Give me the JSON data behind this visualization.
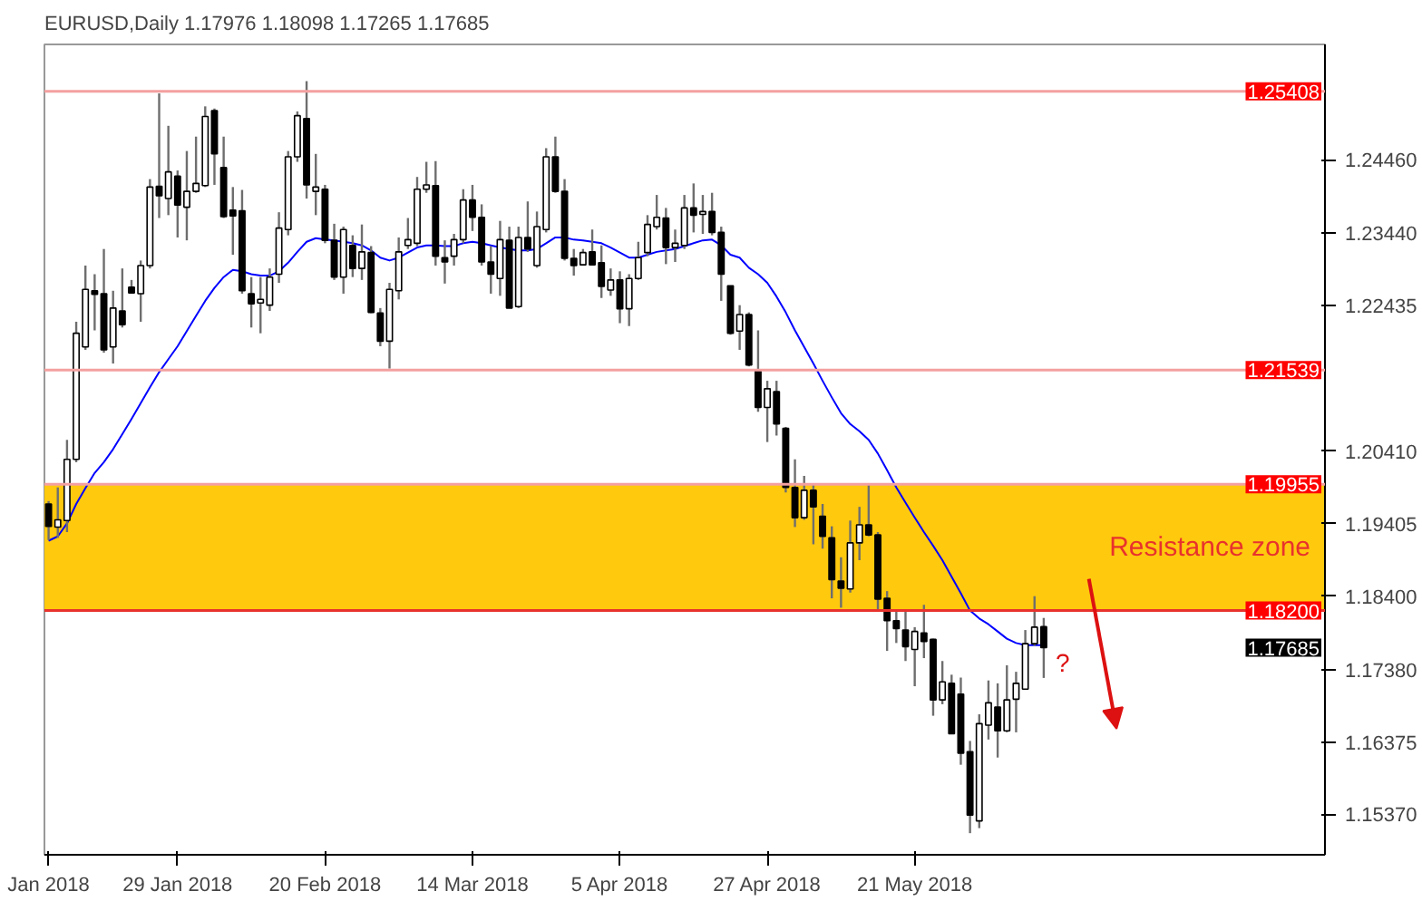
{
  "chart_data": {
    "type": "candlestick",
    "title": "EURUSD,Daily 1.17976 1.18098 1.17265 1.17685",
    "categories": [
      "Jan 2018",
      null,
      null,
      null,
      null,
      null,
      null,
      null,
      null,
      null,
      null,
      null,
      null,
      null,
      "29 Jan 2018",
      null,
      null,
      null,
      null,
      null,
      null,
      null,
      null,
      null,
      null,
      null,
      null,
      null,
      null,
      null,
      "20 Feb 2018",
      null,
      null,
      null,
      null,
      null,
      null,
      null,
      null,
      null,
      null,
      null,
      null,
      null,
      null,
      null,
      "14 Mar 2018",
      null,
      null,
      null,
      null,
      null,
      null,
      null,
      null,
      null,
      null,
      null,
      null,
      null,
      null,
      null,
      "5 Apr 2018",
      null,
      null,
      null,
      null,
      null,
      null,
      null,
      null,
      null,
      null,
      null,
      null,
      null,
      null,
      null,
      "27 Apr 2018",
      null,
      null,
      null,
      null,
      null,
      null,
      null,
      null,
      null,
      null,
      null,
      null,
      null,
      null,
      null,
      "21 May 2018",
      null,
      null,
      null,
      null,
      null,
      null,
      null,
      null,
      null,
      null,
      null,
      null,
      null,
      null
    ],
    "ohlc": [
      [
        1.1968,
        1.1972,
        1.1918,
        1.1937
      ],
      [
        1.1936,
        1.1991,
        1.1921,
        1.1946
      ],
      [
        1.1945,
        1.2057,
        1.1929,
        1.203
      ],
      [
        1.203,
        1.2221,
        1.2026,
        1.2205
      ],
      [
        1.2186,
        1.2299,
        1.2182,
        1.2266
      ],
      [
        1.2264,
        1.2287,
        1.2209,
        1.2259
      ],
      [
        1.226,
        1.2322,
        1.2178,
        1.2182
      ],
      [
        1.2186,
        1.2264,
        1.2163,
        1.224
      ],
      [
        1.2236,
        1.2295,
        1.2213,
        1.2217
      ],
      [
        1.2269,
        1.2279,
        1.226,
        1.2261
      ],
      [
        1.226,
        1.2306,
        1.2221,
        1.2299
      ],
      [
        1.2299,
        1.2419,
        1.2295,
        1.2408
      ],
      [
        1.2409,
        1.2538,
        1.2365,
        1.2396
      ],
      [
        1.2392,
        1.2493,
        1.2369,
        1.2429
      ],
      [
        1.2423,
        1.2431,
        1.2338,
        1.2383
      ],
      [
        1.238,
        1.2458,
        1.2334,
        1.2402
      ],
      [
        1.2402,
        1.2478,
        1.24,
        1.2413
      ],
      [
        1.241,
        1.252,
        1.2408,
        1.2506
      ],
      [
        1.2514,
        1.2517,
        1.2411,
        1.2454
      ],
      [
        1.2435,
        1.2478,
        1.2365,
        1.2367
      ],
      [
        1.2376,
        1.2408,
        1.2314,
        1.2368
      ],
      [
        1.2375,
        1.2404,
        1.226,
        1.2264
      ],
      [
        1.226,
        1.2283,
        1.2213,
        1.2246
      ],
      [
        1.2247,
        1.2283,
        1.2205,
        1.2252
      ],
      [
        1.2244,
        1.2295,
        1.2236,
        1.2283
      ],
      [
        1.2287,
        1.2373,
        1.2275,
        1.2351
      ],
      [
        1.2349,
        1.2458,
        1.2341,
        1.245
      ],
      [
        1.245,
        1.2513,
        1.2443,
        1.2507
      ],
      [
        1.2503,
        1.2555,
        1.2392,
        1.2411
      ],
      [
        1.2402,
        1.2454,
        1.2369,
        1.2408
      ],
      [
        1.2405,
        1.2411,
        1.233,
        1.2334
      ],
      [
        1.2334,
        1.2357,
        1.2279,
        1.2283
      ],
      [
        1.2283,
        1.2353,
        1.226,
        1.2349
      ],
      [
        1.2327,
        1.2341,
        1.2283,
        1.2295
      ],
      [
        1.2295,
        1.2356,
        1.2279,
        1.2318
      ],
      [
        1.2317,
        1.2326,
        1.2233,
        1.2234
      ],
      [
        1.2233,
        1.224,
        1.2187,
        1.2194
      ],
      [
        1.2194,
        1.2275,
        1.2156,
        1.2266
      ],
      [
        1.2264,
        1.2338,
        1.2252,
        1.2318
      ],
      [
        1.2327,
        1.2365,
        1.2322,
        1.2335
      ],
      [
        1.233,
        1.2422,
        1.2326,
        1.2405
      ],
      [
        1.2405,
        1.2443,
        1.24,
        1.2411
      ],
      [
        1.241,
        1.2444,
        1.2299,
        1.2312
      ],
      [
        1.231,
        1.2334,
        1.2274,
        1.2304
      ],
      [
        1.2312,
        1.2343,
        1.2299,
        1.2335
      ],
      [
        1.2335,
        1.2405,
        1.233,
        1.239
      ],
      [
        1.239,
        1.2411,
        1.2347,
        1.2366
      ],
      [
        1.2366,
        1.2384,
        1.2299,
        1.2304
      ],
      [
        1.2304,
        1.2326,
        1.226,
        1.2287
      ],
      [
        1.2281,
        1.2361,
        1.2257,
        1.2335
      ],
      [
        1.2334,
        1.2353,
        1.224,
        1.224
      ],
      [
        1.2242,
        1.2353,
        1.224,
        1.2338
      ],
      [
        1.2338,
        1.2388,
        1.2318,
        1.2322
      ],
      [
        1.2299,
        1.2374,
        1.2296,
        1.2353
      ],
      [
        1.2349,
        1.2462,
        1.2345,
        1.245
      ],
      [
        1.245,
        1.2478,
        1.24,
        1.2402
      ],
      [
        1.2402,
        1.2419,
        1.2306,
        1.2309
      ],
      [
        1.2309,
        1.2322,
        1.2285,
        1.2299
      ],
      [
        1.23,
        1.2322,
        1.2299,
        1.2317
      ],
      [
        1.2318,
        1.2349,
        1.2299,
        1.23
      ],
      [
        1.2303,
        1.2327,
        1.2254,
        1.227
      ],
      [
        1.2265,
        1.2295,
        1.2257,
        1.2279
      ],
      [
        1.2279,
        1.2291,
        1.2219,
        1.2239
      ],
      [
        1.2239,
        1.2287,
        1.2215,
        1.2281
      ],
      [
        1.2281,
        1.2332,
        1.2279,
        1.231
      ],
      [
        1.2317,
        1.2369,
        1.2312,
        1.2356
      ],
      [
        1.2353,
        1.2397,
        1.2349,
        1.2366
      ],
      [
        1.2365,
        1.2379,
        1.2301,
        1.2324
      ],
      [
        1.2324,
        1.2349,
        1.2304,
        1.233
      ],
      [
        1.2327,
        1.2397,
        1.2322,
        1.2379
      ],
      [
        1.2379,
        1.2413,
        1.2345,
        1.2369
      ],
      [
        1.237,
        1.2397,
        1.2343,
        1.2374
      ],
      [
        1.2374,
        1.24,
        1.2341,
        1.2345
      ],
      [
        1.2345,
        1.2353,
        1.225,
        1.2287
      ],
      [
        1.2271,
        1.2271,
        1.2203,
        1.2205
      ],
      [
        1.2208,
        1.2244,
        1.2182,
        1.2231
      ],
      [
        1.2231,
        1.2234,
        1.2159,
        1.2161
      ],
      [
        1.2153,
        1.2209,
        1.2096,
        1.2102
      ],
      [
        1.2102,
        1.2139,
        1.2054,
        1.2128
      ],
      [
        1.2124,
        1.2139,
        1.2063,
        1.2079
      ],
      [
        1.2073,
        1.2075,
        1.1984,
        1.1991
      ],
      [
        1.1991,
        1.203,
        1.1936,
        1.1949
      ],
      [
        1.1949,
        1.2007,
        1.1946,
        1.1987
      ],
      [
        1.1987,
        1.1995,
        1.1912,
        1.1964
      ],
      [
        1.1951,
        1.1968,
        1.1906,
        1.1923
      ],
      [
        1.1921,
        1.1937,
        1.1837,
        1.1863
      ],
      [
        1.1861,
        1.1894,
        1.1824,
        1.1851
      ],
      [
        1.185,
        1.1945,
        1.1845,
        1.1914
      ],
      [
        1.1914,
        1.1964,
        1.189,
        1.1939
      ],
      [
        1.1939,
        1.1995,
        1.1923,
        1.1925
      ],
      [
        1.1925,
        1.1929,
        1.182,
        1.1836
      ],
      [
        1.1837,
        1.1847,
        1.1764,
        1.1806
      ],
      [
        1.1806,
        1.182,
        1.1775,
        1.1795
      ],
      [
        1.1793,
        1.1822,
        1.175,
        1.177
      ],
      [
        1.1766,
        1.1797,
        1.1715,
        1.1791
      ],
      [
        1.1789,
        1.1828,
        1.1754,
        1.1777
      ],
      [
        1.178,
        1.1781,
        1.1674,
        1.1696
      ],
      [
        1.1696,
        1.175,
        1.169,
        1.1721
      ],
      [
        1.1719,
        1.1731,
        1.1649,
        1.1649
      ],
      [
        1.1704,
        1.1727,
        1.1606,
        1.1622
      ],
      [
        1.1624,
        1.1639,
        1.1511,
        1.1536
      ],
      [
        1.1528,
        1.1676,
        1.1518,
        1.1663
      ],
      [
        1.1661,
        1.1723,
        1.1641,
        1.1692
      ],
      [
        1.1686,
        1.1719,
        1.1616,
        1.1653
      ],
      [
        1.1653,
        1.1744,
        1.1651,
        1.1696
      ],
      [
        1.1697,
        1.1735,
        1.1651,
        1.1719
      ],
      [
        1.1711,
        1.1793,
        1.171,
        1.1774
      ],
      [
        1.1774,
        1.184,
        1.1771,
        1.1797
      ],
      [
        1.17976,
        1.18098,
        1.17265,
        1.17685
      ]
    ],
    "series": [
      {
        "type": "line",
        "color": "#0000ff",
        "values": [
          1.1917,
          1.1923,
          1.1941,
          1.1968,
          1.199,
          1.2011,
          1.2026,
          1.2044,
          1.2065,
          1.2086,
          1.2108,
          1.213,
          1.2151,
          1.2169,
          1.2187,
          1.2208,
          1.2229,
          1.225,
          1.2268,
          1.2283,
          1.2293,
          1.2291,
          1.2287,
          1.2285,
          1.2285,
          1.2291,
          1.2303,
          1.2318,
          1.2332,
          1.2337,
          1.2335,
          1.2334,
          1.2332,
          1.233,
          1.2327,
          1.232,
          1.231,
          1.2306,
          1.231,
          1.2317,
          1.2324,
          1.2327,
          1.2327,
          1.2326,
          1.2326,
          1.233,
          1.2332,
          1.233,
          1.2327,
          1.2324,
          1.2322,
          1.232,
          1.232,
          1.2322,
          1.233,
          1.2338,
          1.2338,
          1.2335,
          1.2334,
          1.2332,
          1.233,
          1.2324,
          1.2317,
          1.231,
          1.231,
          1.2314,
          1.2318,
          1.232,
          1.2322,
          1.2326,
          1.233,
          1.2334,
          1.2335,
          1.2327,
          1.2314,
          1.231,
          1.2296,
          1.2287,
          1.2275,
          1.2256,
          1.2234,
          1.2209,
          1.2186,
          1.2163,
          1.2139,
          1.2116,
          1.2094,
          1.2079,
          1.2069,
          1.2057,
          1.2038,
          1.2015,
          1.1991,
          1.197,
          1.1949,
          1.1929,
          1.191,
          1.189,
          1.1867,
          1.1844,
          1.182,
          1.1809,
          1.1801,
          1.1791,
          1.1781,
          1.1775,
          1.1772,
          1.1772,
          1.1772
        ]
      }
    ],
    "ylim": [
      1.1481,
      1.2606
    ],
    "yticks": [
      {
        "value": 1.2446,
        "label": "1.24460"
      },
      {
        "value": 1.2344,
        "label": "1.23440"
      },
      {
        "value": 1.22435,
        "label": "1.22435"
      },
      {
        "value": 1.2041,
        "label": "1.20410"
      },
      {
        "value": 1.19405,
        "label": "1.19405"
      },
      {
        "value": 1.184,
        "label": "1.18400"
      },
      {
        "value": 1.1738,
        "label": "1.17380"
      },
      {
        "value": 1.16375,
        "label": "1.16375"
      },
      {
        "value": 1.1537,
        "label": "1.15370"
      }
    ],
    "ref_lines": [
      {
        "axis": "y",
        "value": 1.25408,
        "label": "1.25408",
        "color": "#f4a0a0"
      },
      {
        "axis": "y",
        "value": 1.21539,
        "label": "1.21539",
        "color": "#f4a0a0"
      },
      {
        "axis": "y",
        "value": 1.19955,
        "label": "1.19955",
        "color": "#f4a0a0"
      },
      {
        "axis": "y",
        "value": 1.182,
        "label": "1.18200",
        "color": "#e8322d"
      }
    ],
    "bands": [
      {
        "axis": "y",
        "from": 1.182,
        "to": 1.19955,
        "label": "Resistance zone",
        "color": "#ffc90e"
      }
    ],
    "annotations": [
      "1.17685",
      "?"
    ],
    "grid": false
  }
}
